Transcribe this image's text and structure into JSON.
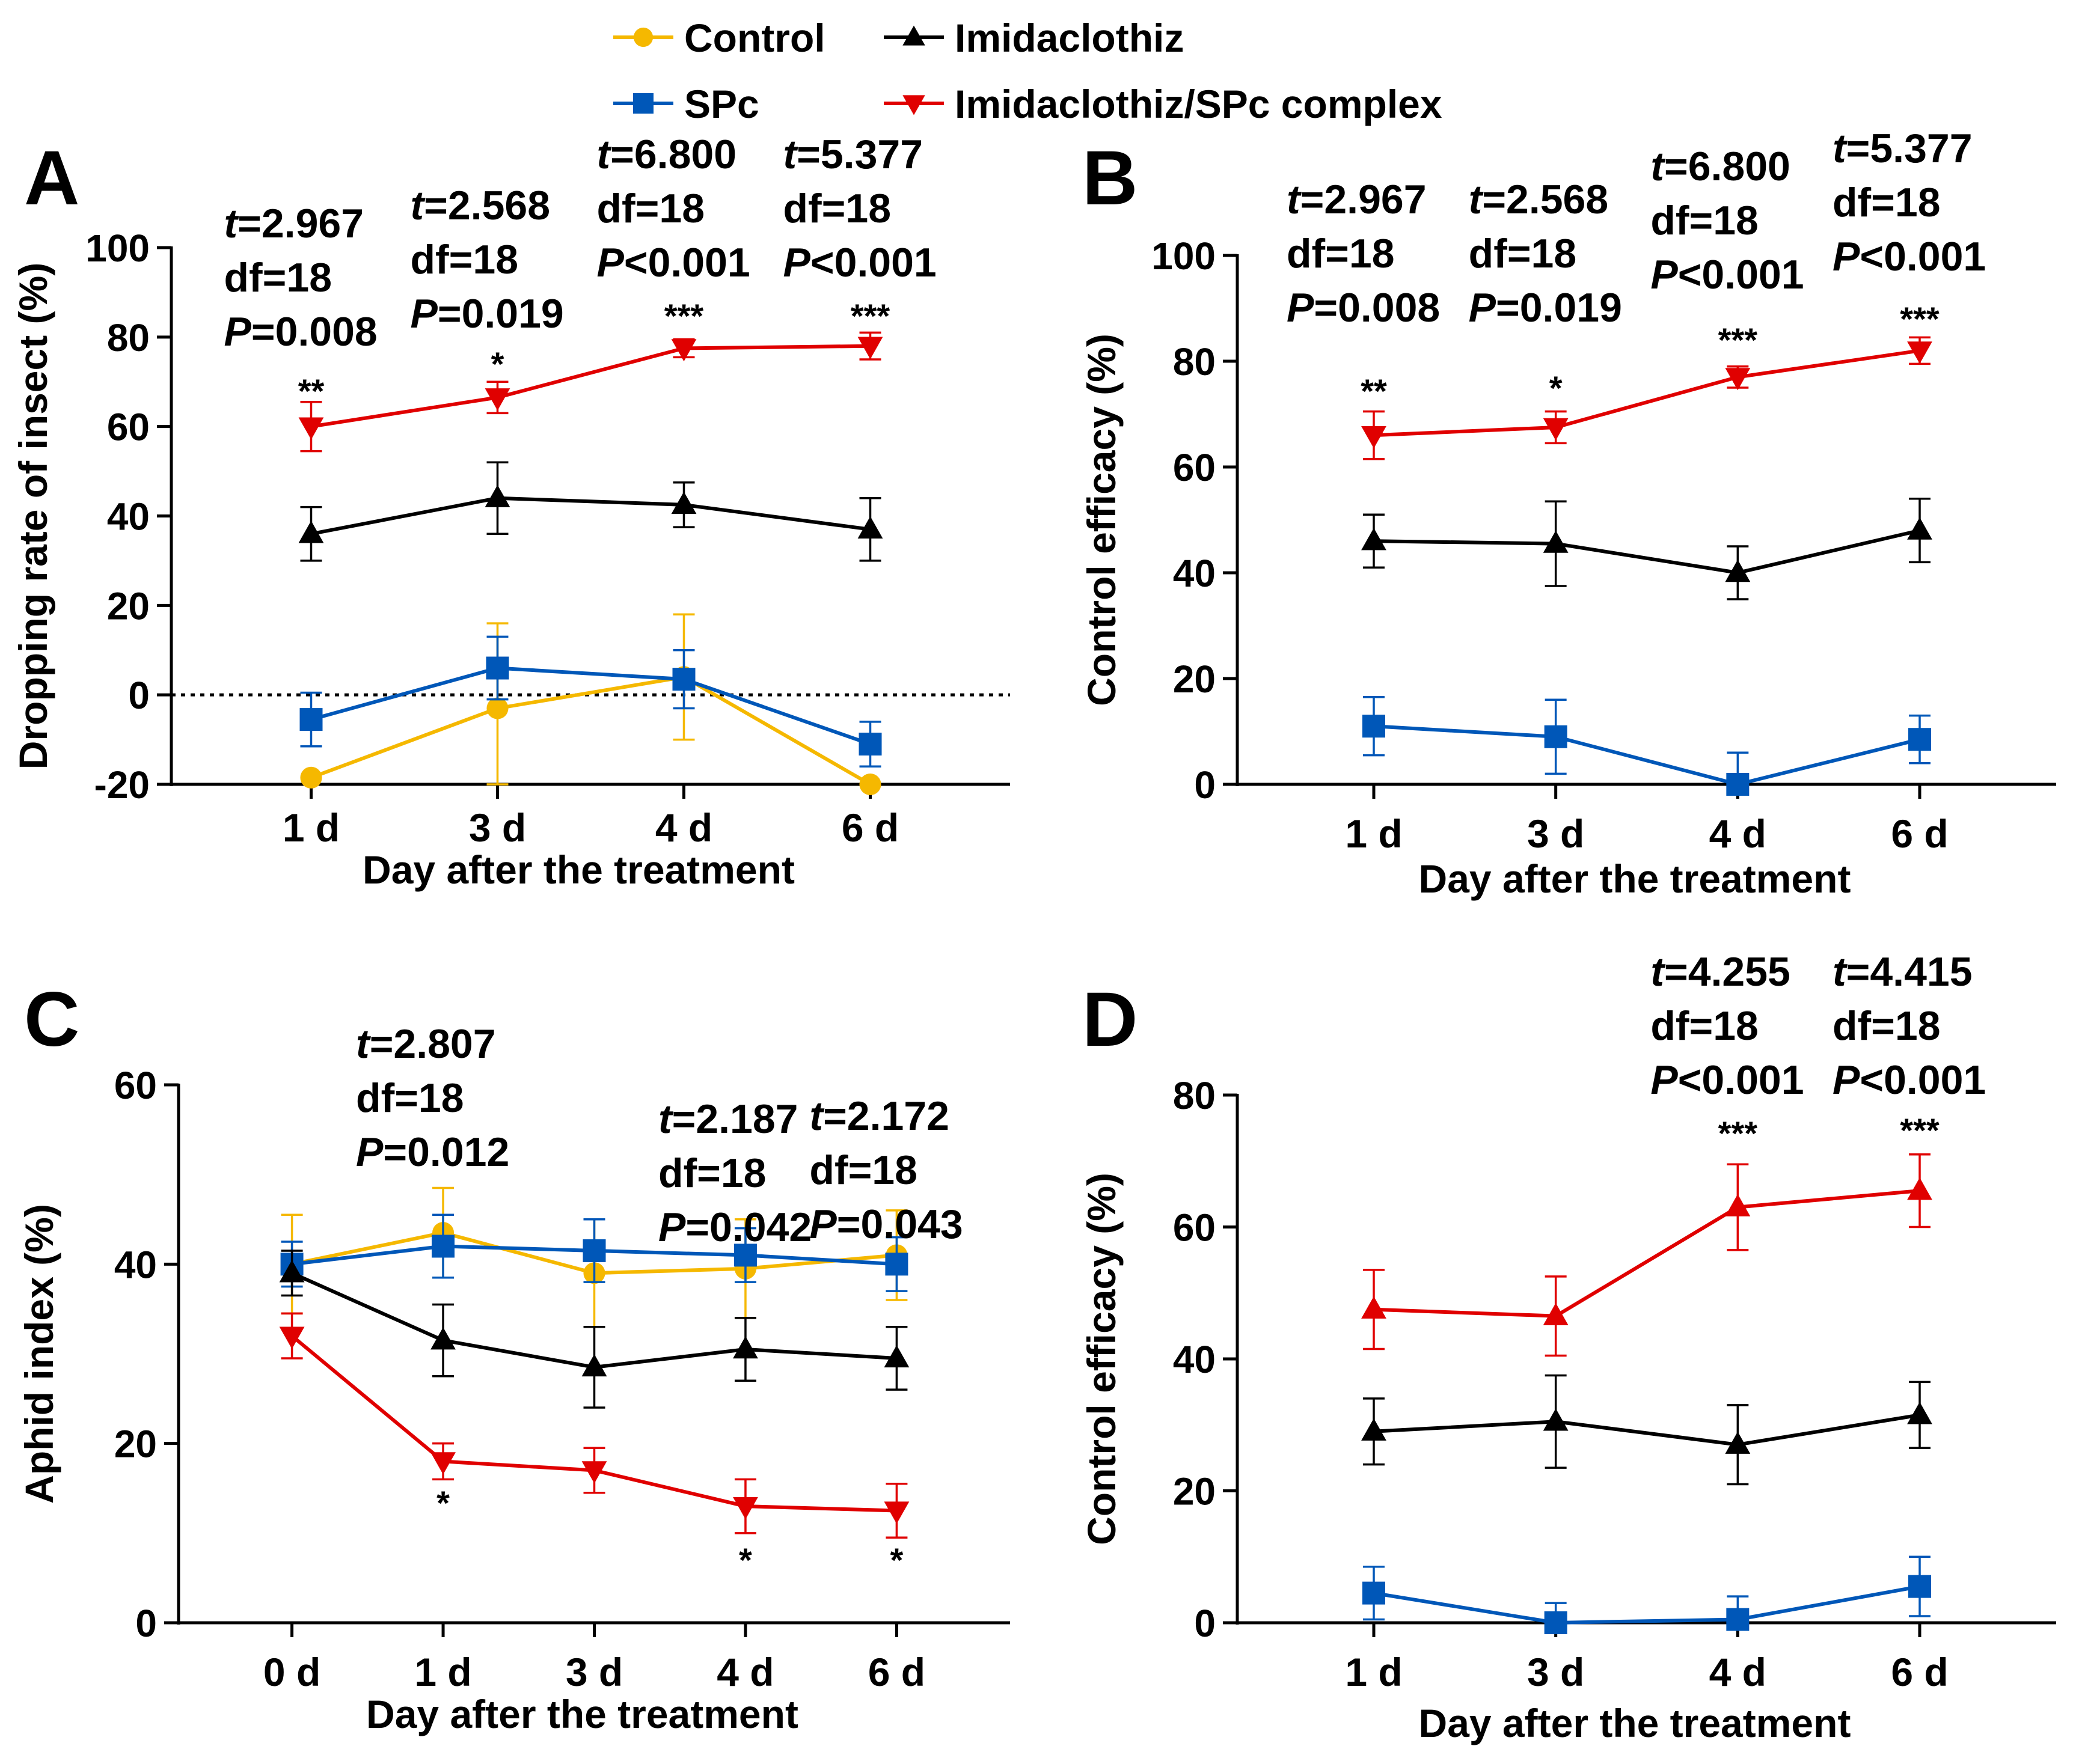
{
  "legend": {
    "items": [
      {
        "label": "Control",
        "color": "#F5B800",
        "marker": "circle"
      },
      {
        "label": "Imidaclothiz",
        "color": "#000000",
        "marker": "triangle-up"
      },
      {
        "label": "SPc",
        "color": "#0057B8",
        "marker": "square"
      },
      {
        "label": "Imidaclothiz/SPc complex",
        "color": "#E00000",
        "marker": "triangle-down"
      }
    ]
  },
  "chart_data": [
    {
      "panel": "A",
      "type": "line",
      "xlabel": "Day after the treatment",
      "ylabel": "Dropping rate of insect (%)",
      "ylim": [
        -20,
        100
      ],
      "yticks": [
        -20,
        0,
        20,
        40,
        60,
        80,
        100
      ],
      "categories": [
        "1 d",
        "3 d",
        "4 d",
        "6 d"
      ],
      "zero_line": true,
      "series": [
        {
          "name": "Control",
          "color": "#F5B800",
          "marker": "circle",
          "values": [
            -18.5,
            -3,
            4,
            -20
          ],
          "errors": [
            0,
            19,
            14,
            0
          ]
        },
        {
          "name": "SPc",
          "color": "#0057B8",
          "marker": "square",
          "values": [
            -5.5,
            6,
            3.5,
            -11
          ],
          "errors": [
            6,
            7,
            6.5,
            5
          ]
        },
        {
          "name": "Imidaclothiz",
          "color": "#000000",
          "marker": "triangle-up",
          "values": [
            36,
            44,
            42.5,
            37
          ],
          "errors": [
            6,
            8,
            5,
            7
          ]
        },
        {
          "name": "Imidaclothiz/SPc complex",
          "color": "#E00000",
          "marker": "triangle-down",
          "values": [
            60,
            66.5,
            77.5,
            78
          ],
          "errors": [
            5.5,
            3.5,
            2,
            3
          ]
        }
      ],
      "annotations": [
        {
          "index": 0,
          "stars": "**",
          "t": "=2.967",
          "df": "df=18",
          "p": "=0.008"
        },
        {
          "index": 1,
          "stars": "*",
          "t": "=2.568",
          "df": "df=18",
          "p": "=0.019"
        },
        {
          "index": 2,
          "stars": "***",
          "t": "=6.800",
          "df": "df=18",
          "p": "<0.001"
        },
        {
          "index": 3,
          "stars": "***",
          "t": "=5.377",
          "df": "df=18",
          "p": "<0.001"
        }
      ]
    },
    {
      "panel": "B",
      "type": "line",
      "xlabel": "Day after the treatment",
      "ylabel": "Control efficacy (%)",
      "ylim": [
        0,
        100
      ],
      "yticks": [
        0,
        20,
        40,
        60,
        80,
        100
      ],
      "categories": [
        "1 d",
        "3 d",
        "4 d",
        "6 d"
      ],
      "series": [
        {
          "name": "SPc",
          "color": "#0057B8",
          "marker": "square",
          "values": [
            11,
            9,
            0,
            8.5
          ],
          "errors": [
            5.5,
            7,
            6,
            4.5
          ]
        },
        {
          "name": "Imidaclothiz",
          "color": "#000000",
          "marker": "triangle-up",
          "values": [
            46,
            45.5,
            40,
            48
          ],
          "errors": [
            5,
            8,
            5,
            6
          ]
        },
        {
          "name": "Imidaclothiz/SPc complex",
          "color": "#E00000",
          "marker": "triangle-down",
          "values": [
            66,
            67.5,
            77,
            82
          ],
          "errors": [
            4.5,
            3,
            2,
            2.5
          ]
        }
      ],
      "annotations": [
        {
          "index": 0,
          "stars": "**",
          "t": "=2.967",
          "df": "df=18",
          "p": "=0.008"
        },
        {
          "index": 1,
          "stars": "*",
          "t": "=2.568",
          "df": "df=18",
          "p": "=0.019"
        },
        {
          "index": 2,
          "stars": "***",
          "t": "=6.800",
          "df": "df=18",
          "p": "<0.001"
        },
        {
          "index": 3,
          "stars": "***",
          "t": "=5.377",
          "df": "df=18",
          "p": "<0.001"
        }
      ]
    },
    {
      "panel": "C",
      "type": "line",
      "xlabel": "Day after the treatment",
      "ylabel": "Aphid index (%)",
      "ylim": [
        0,
        60
      ],
      "yticks": [
        0,
        20,
        40,
        60
      ],
      "categories": [
        "0 d",
        "1 d",
        "3 d",
        "4 d",
        "6 d"
      ],
      "series": [
        {
          "name": "Control",
          "color": "#F5B800",
          "marker": "circle",
          "values": [
            40,
            43.5,
            39,
            39.5,
            41
          ],
          "errors": [
            5.5,
            5,
            6,
            5.5,
            5
          ]
        },
        {
          "name": "SPc",
          "color": "#0057B8",
          "marker": "square",
          "values": [
            40,
            42,
            41.5,
            41,
            40
          ],
          "errors": [
            2.5,
            3.5,
            3.5,
            3,
            3
          ]
        },
        {
          "name": "Imidaclothiz",
          "color": "#000000",
          "marker": "triangle-up",
          "values": [
            39,
            31.5,
            28.5,
            30.5,
            29.5
          ],
          "errors": [
            2.5,
            4,
            4.5,
            3.5,
            3.5
          ]
        },
        {
          "name": "Imidaclothiz/SPc complex",
          "color": "#E00000",
          "marker": "triangle-down",
          "values": [
            32,
            18,
            17,
            13,
            12.5
          ],
          "errors": [
            2.5,
            2,
            2.5,
            3,
            3
          ]
        }
      ],
      "annotations": [
        {
          "index": 1,
          "stars": "*",
          "t": "=2.807",
          "df": "df=18",
          "p": "=0.012"
        },
        {
          "index": 3,
          "stars": "*",
          "t": "=2.187",
          "df": "df=18",
          "p": "=0.042"
        },
        {
          "index": 4,
          "stars": "*",
          "t": "=2.172",
          "df": "df=18",
          "p": "=0.043"
        }
      ]
    },
    {
      "panel": "D",
      "type": "line",
      "xlabel": "Day after the treatment",
      "ylabel": "Control efficacy (%)",
      "ylim": [
        0,
        80
      ],
      "yticks": [
        0,
        20,
        40,
        60,
        80
      ],
      "categories": [
        "1 d",
        "3 d",
        "4 d",
        "6 d"
      ],
      "series": [
        {
          "name": "SPc",
          "color": "#0057B8",
          "marker": "square",
          "values": [
            4.5,
            0,
            0.5,
            5.5
          ],
          "errors": [
            4,
            3,
            3.5,
            4.5
          ]
        },
        {
          "name": "Imidaclothiz",
          "color": "#000000",
          "marker": "triangle-up",
          "values": [
            29,
            30.5,
            27,
            31.5
          ],
          "errors": [
            5,
            7,
            6,
            5
          ]
        },
        {
          "name": "Imidaclothiz/SPc complex",
          "color": "#E00000",
          "marker": "triangle-up",
          "values": [
            47.5,
            46.5,
            63,
            65.5
          ],
          "errors": [
            6,
            6,
            6.5,
            5.5
          ]
        }
      ],
      "annotations": [
        {
          "index": 2,
          "stars": "***",
          "t": "=4.255",
          "df": "df=18",
          "p": "<0.001"
        },
        {
          "index": 3,
          "stars": "***",
          "t": "=4.415",
          "df": "df=18",
          "p": "<0.001"
        }
      ]
    }
  ]
}
